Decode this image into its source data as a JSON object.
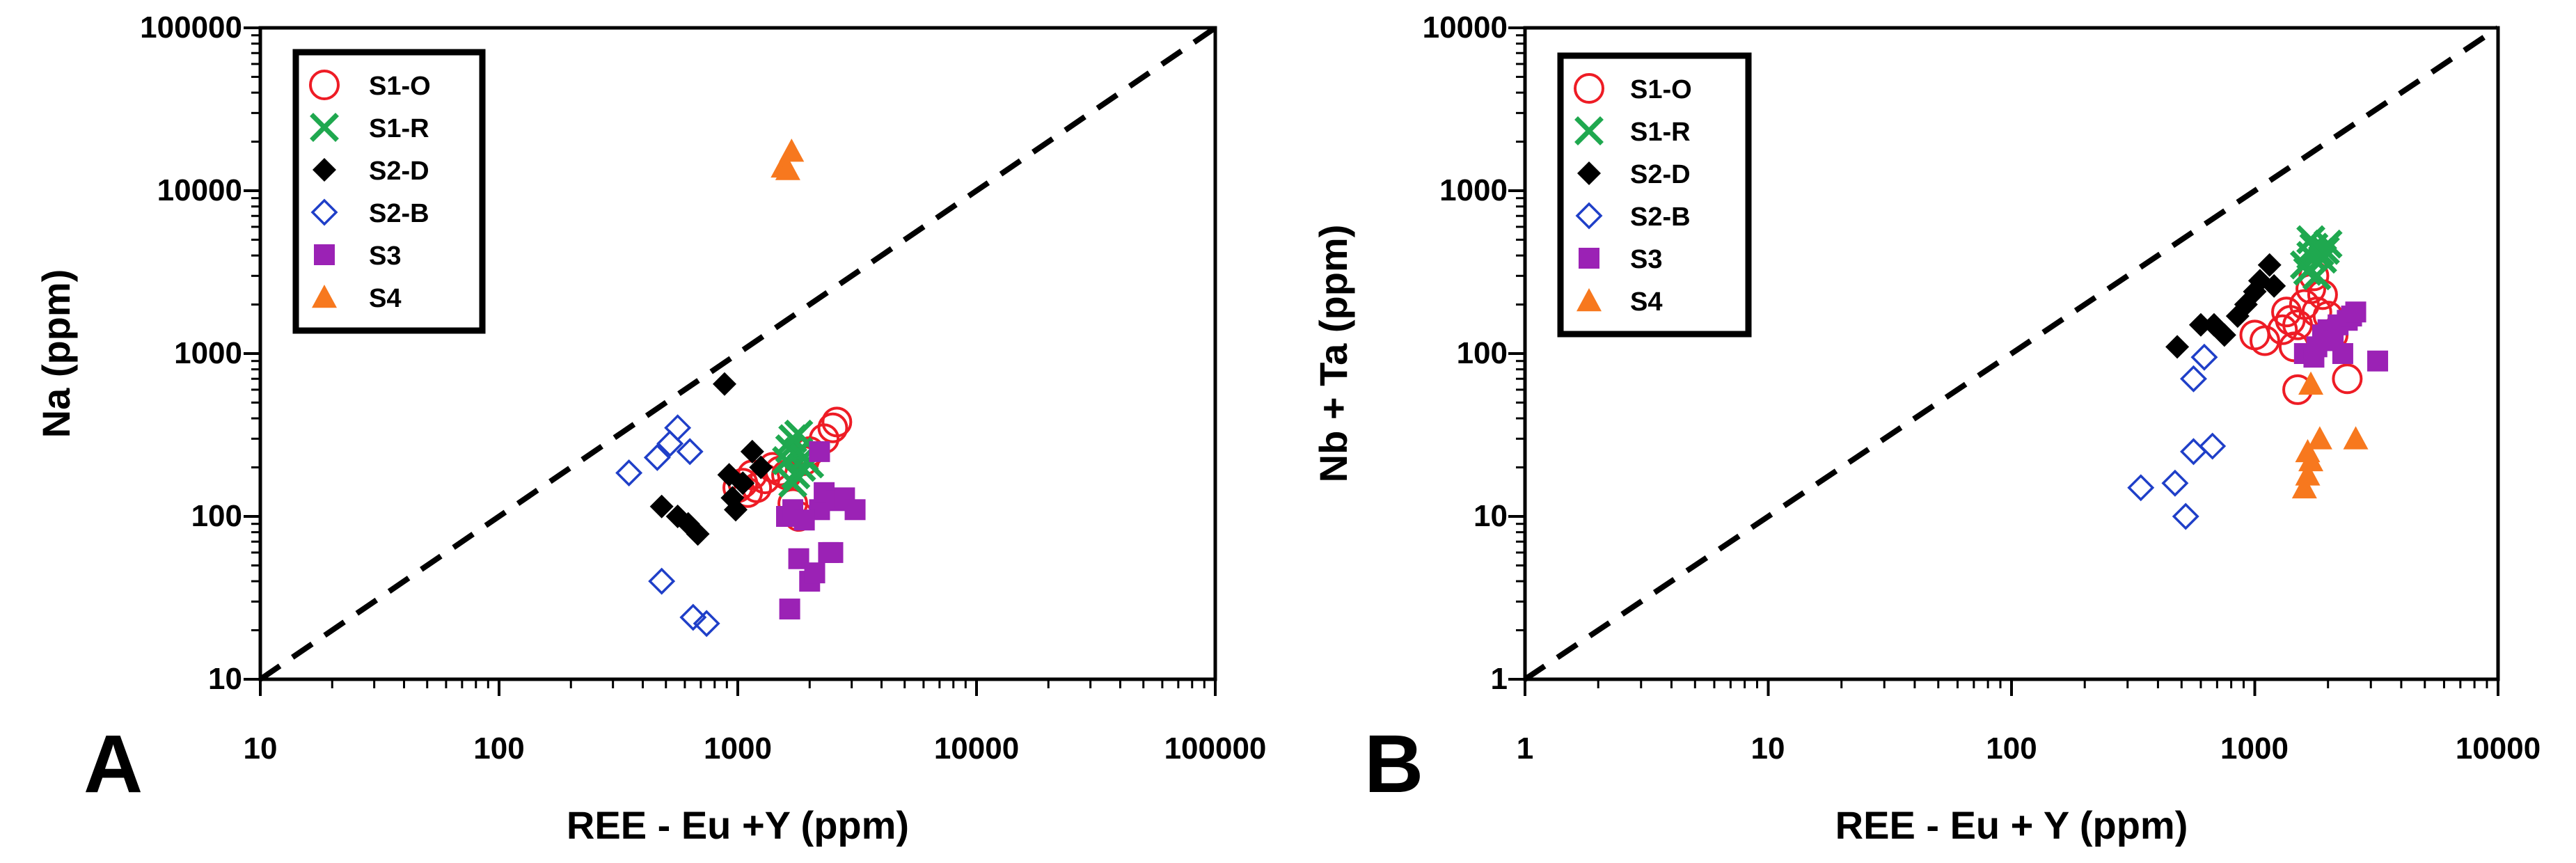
{
  "chart_data": [
    {
      "type": "scatter",
      "panel_label": "A",
      "xlabel": "REE - Eu +Y (ppm)",
      "ylabel": "Na (ppm)",
      "xscale": "log",
      "yscale": "log",
      "xlim": [
        10,
        100000
      ],
      "ylim": [
        10,
        100000
      ],
      "xtick_values": [
        10,
        100,
        1000,
        10000,
        100000
      ],
      "xtick_labels": [
        "10",
        "100",
        "1000",
        "10000",
        "100000"
      ],
      "ytick_values": [
        10,
        100,
        1000,
        10000,
        100000
      ],
      "ytick_labels": [
        "10",
        "100",
        "1000",
        "10000",
        "100000"
      ],
      "legend_position": "top-left",
      "reference_line": {
        "style": "dashed",
        "from": [
          10,
          10
        ],
        "to": [
          100000,
          100000
        ]
      },
      "series": [
        {
          "name": "S1-O",
          "marker": "open-circle",
          "color": "#ee1c25",
          "x": [
            1000,
            1050,
            1100,
            1150,
            1200,
            1300,
            1400,
            1500,
            1600,
            1700,
            1800,
            1900,
            2000,
            2300,
            2500,
            2600
          ],
          "y": [
            150,
            160,
            140,
            180,
            150,
            170,
            200,
            190,
            180,
            120,
            100,
            220,
            250,
            300,
            350,
            380
          ]
        },
        {
          "name": "S1-R",
          "marker": "x",
          "color": "#1fa84f",
          "x": [
            1600,
            1650,
            1700,
            1750,
            1800,
            1850,
            1900,
            1700,
            1800,
            2000
          ],
          "y": [
            220,
            260,
            300,
            180,
            250,
            200,
            230,
            160,
            320,
            210
          ]
        },
        {
          "name": "S2-D",
          "marker": "filled-diamond",
          "color": "#000000",
          "x": [
            480,
            560,
            620,
            680,
            880,
            920,
            980,
            1050,
            1150,
            1250,
            950
          ],
          "y": [
            115,
            100,
            90,
            78,
            650,
            180,
            110,
            160,
            250,
            200,
            130
          ]
        },
        {
          "name": "S2-B",
          "marker": "open-diamond",
          "color": "#1f3fc8",
          "x": [
            350,
            460,
            520,
            560,
            630,
            480,
            650,
            740
          ],
          "y": [
            185,
            230,
            280,
            350,
            250,
            40,
            24,
            22
          ]
        },
        {
          "name": "S3",
          "marker": "filled-square",
          "color": "#9b22b5",
          "x": [
            1600,
            1650,
            1800,
            2000,
            2100,
            2200,
            2300,
            2500,
            2600,
            2800,
            3100,
            1700,
            2400,
            1900,
            2200
          ],
          "y": [
            100,
            27,
            55,
            40,
            45,
            110,
            140,
            60,
            125,
            130,
            110,
            110,
            60,
            95,
            250
          ]
        },
        {
          "name": "S4",
          "marker": "filled-triangle",
          "color": "#f7781e",
          "x": [
            1550,
            1620,
            1680
          ],
          "y": [
            14000,
            13500,
            17500
          ]
        }
      ]
    },
    {
      "type": "scatter",
      "panel_label": "B",
      "xlabel": "REE - Eu + Y (ppm)",
      "ylabel": "Nb + Ta (ppm)",
      "xscale": "log",
      "yscale": "log",
      "xlim": [
        1,
        10000
      ],
      "ylim": [
        1,
        10000
      ],
      "xtick_values": [
        1,
        10,
        100,
        1000,
        10000
      ],
      "xtick_labels": [
        "1",
        "10",
        "100",
        "1000",
        "10000"
      ],
      "ytick_values": [
        1,
        10,
        100,
        1000,
        10000
      ],
      "ytick_labels": [
        "1",
        "10",
        "100",
        "1000",
        "10000"
      ],
      "legend_position": "top-left",
      "reference_line": {
        "style": "dashed",
        "from": [
          1,
          1
        ],
        "to": [
          10000,
          10000
        ]
      },
      "series": [
        {
          "name": "S1-O",
          "marker": "open-circle",
          "color": "#ee1c25",
          "x": [
            1000,
            1100,
            1300,
            1350,
            1400,
            1450,
            1500,
            1600,
            1700,
            1750,
            1800,
            1900,
            2000,
            2100,
            2400,
            1500
          ],
          "y": [
            130,
            120,
            140,
            180,
            160,
            110,
            150,
            200,
            250,
            300,
            180,
            230,
            170,
            130,
            70,
            60
          ]
        },
        {
          "name": "S1-R",
          "marker": "x",
          "color": "#1fa84f",
          "x": [
            1600,
            1700,
            1750,
            1800,
            1850,
            1900,
            2000,
            1700,
            1650,
            1950
          ],
          "y": [
            350,
            400,
            450,
            300,
            420,
            380,
            470,
            500,
            320,
            430
          ]
        },
        {
          "name": "S2-D",
          "marker": "filled-diamond",
          "color": "#000000",
          "x": [
            480,
            600,
            680,
            750,
            850,
            920,
            1000,
            1050,
            1150,
            1200
          ],
          "y": [
            110,
            150,
            150,
            130,
            170,
            200,
            240,
            280,
            350,
            260
          ]
        },
        {
          "name": "S2-B",
          "marker": "open-diamond",
          "color": "#1f3fc8",
          "x": [
            340,
            470,
            520,
            560,
            670,
            560,
            620
          ],
          "y": [
            15,
            16,
            10,
            25,
            27,
            70,
            95
          ]
        },
        {
          "name": "S3",
          "marker": "filled-square",
          "color": "#9b22b5",
          "x": [
            1600,
            1800,
            1900,
            2000,
            2100,
            2200,
            2400,
            2500,
            2600,
            3200,
            2300,
            1750
          ],
          "y": [
            100,
            110,
            130,
            140,
            120,
            150,
            160,
            170,
            180,
            90,
            100,
            95
          ]
        },
        {
          "name": "S4",
          "marker": "filled-triangle",
          "color": "#f7781e",
          "x": [
            1600,
            1650,
            1700,
            1650,
            1850,
            2600,
            1700
          ],
          "y": [
            15,
            18,
            22,
            25,
            30,
            30,
            65
          ]
        }
      ]
    }
  ]
}
